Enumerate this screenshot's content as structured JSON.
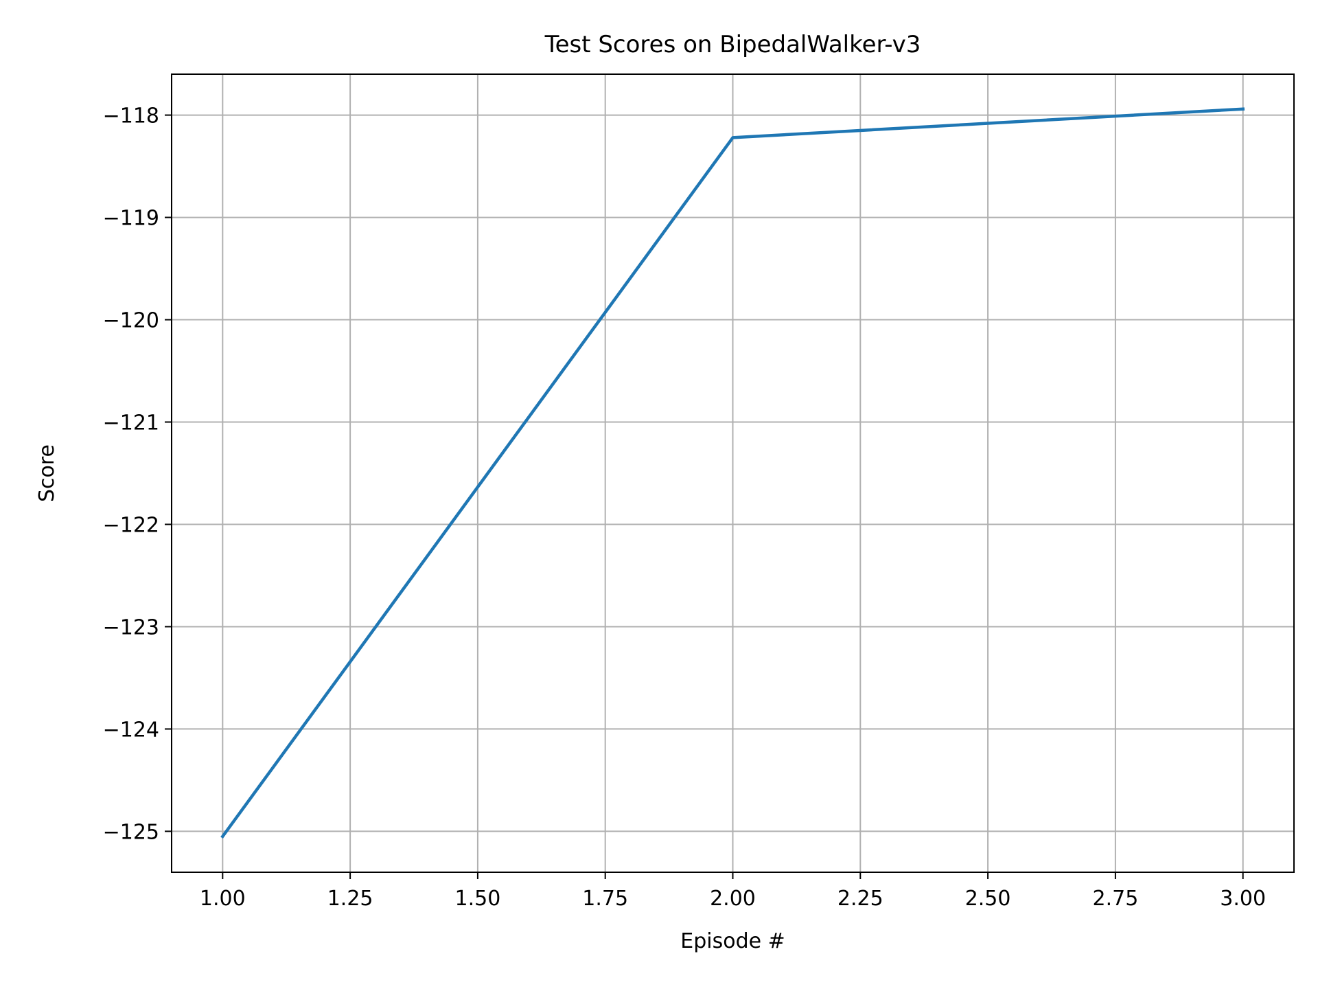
{
  "chart_data": {
    "type": "line",
    "title": "Test Scores on BipedalWalker-v3",
    "xlabel": "Episode #",
    "ylabel": "Score",
    "xlim": [
      0.9,
      3.1
    ],
    "ylim": [
      -125.4,
      -117.6
    ],
    "xticks": [
      1.0,
      1.25,
      1.5,
      1.75,
      2.0,
      2.25,
      2.5,
      2.75,
      3.0
    ],
    "xtick_labels": [
      "1.00",
      "1.25",
      "1.50",
      "1.75",
      "2.00",
      "2.25",
      "2.50",
      "2.75",
      "3.00"
    ],
    "yticks": [
      -118,
      -119,
      -120,
      -121,
      -122,
      -123,
      -124,
      -125
    ],
    "ytick_labels": [
      "−118",
      "−119",
      "−120",
      "−121",
      "−122",
      "−123",
      "−124",
      "−125"
    ],
    "grid": true,
    "legend": false,
    "series": [
      {
        "color": "#1f77b4",
        "x": [
          1,
          2,
          3
        ],
        "y": [
          -125.05,
          -118.22,
          -117.94
        ]
      }
    ]
  }
}
